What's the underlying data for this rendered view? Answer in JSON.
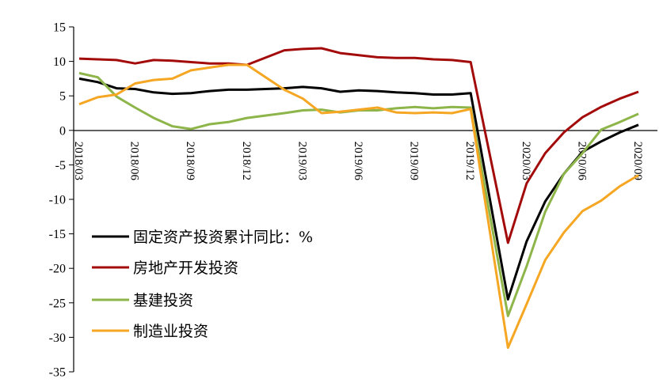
{
  "chart_data": {
    "type": "line",
    "x": [
      "2018/03",
      "2018/04",
      "2018/05",
      "2018/06",
      "2018/07",
      "2018/08",
      "2018/09",
      "2018/10",
      "2018/11",
      "2018/12",
      "2019/02",
      "2019/03",
      "2019/04",
      "2019/05",
      "2019/06",
      "2019/07",
      "2019/08",
      "2019/09",
      "2019/10",
      "2019/11",
      "2019/12",
      "2020/02",
      "2020/03",
      "2020/04",
      "2020/05",
      "2020/06",
      "2020/07",
      "2020/08",
      "2020/09"
    ],
    "x_tick_labels": [
      "2018/03",
      "2018/06",
      "2018/09",
      "2018/12",
      "2019/03",
      "2019/06",
      "2019/09",
      "2019/12",
      "2020/03",
      "2020/06",
      "2020/09"
    ],
    "ylim": [
      -35,
      15
    ],
    "y_ticks": [
      15,
      10,
      5,
      0,
      -5,
      -10,
      -15,
      -20,
      -25,
      -30,
      -35
    ],
    "grid": false,
    "legend_position": "bottom-left",
    "series": [
      {
        "name": "固定资产投资累计同比：%",
        "color": "#000000",
        "values": [
          7.5,
          7.0,
          6.1,
          6.0,
          5.5,
          5.3,
          5.4,
          5.7,
          5.9,
          5.9,
          6.1,
          6.3,
          6.1,
          5.6,
          5.8,
          5.7,
          5.5,
          5.4,
          5.2,
          5.2,
          5.4,
          -24.5,
          -16.1,
          -10.3,
          -6.3,
          -3.1,
          -1.6,
          -0.3,
          0.8
        ]
      },
      {
        "name": "房地产开发投资",
        "color": "#A30B0B",
        "values": [
          10.4,
          10.3,
          10.2,
          9.7,
          10.2,
          10.1,
          9.9,
          9.7,
          9.7,
          9.5,
          11.6,
          11.8,
          11.9,
          11.2,
          10.9,
          10.6,
          10.5,
          10.5,
          10.3,
          10.2,
          9.9,
          -16.3,
          -7.7,
          -3.3,
          -0.3,
          1.9,
          3.4,
          4.6,
          5.6
        ]
      },
      {
        "name": "基建投资",
        "color": "#8DB54A",
        "values": [
          8.3,
          7.7,
          4.9,
          3.3,
          1.8,
          0.6,
          0.2,
          0.9,
          1.2,
          1.8,
          2.5,
          2.9,
          3.0,
          2.6,
          2.9,
          2.9,
          3.2,
          3.4,
          3.2,
          3.4,
          3.3,
          -26.9,
          -19.7,
          -11.8,
          -6.3,
          -3.3,
          0.1,
          1.2,
          2.4
        ]
      },
      {
        "name": "制造业投资",
        "color": "#F5A623",
        "values": [
          3.8,
          4.8,
          5.2,
          6.8,
          7.3,
          7.5,
          8.7,
          9.1,
          9.5,
          9.5,
          5.9,
          4.6,
          2.5,
          2.7,
          3.0,
          3.3,
          2.6,
          2.5,
          2.6,
          2.5,
          3.1,
          -31.5,
          -25.2,
          -18.8,
          -14.8,
          -11.7,
          -10.2,
          -8.1,
          -6.5
        ]
      }
    ]
  }
}
